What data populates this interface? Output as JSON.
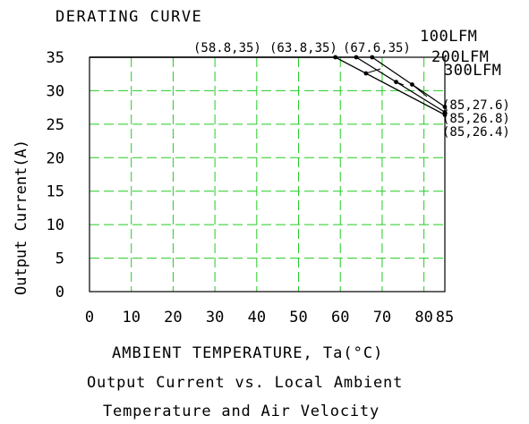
{
  "chart_data": {
    "type": "line",
    "title": "DERATING CURVE",
    "xlabel": "AMBIENT TEMPERATURE, Ta(°C)",
    "ylabel": "Output Current(A)",
    "caption": [
      "Output Current vs. Local Ambient",
      "Temperature and Air Velocity"
    ],
    "xlim": [
      0,
      85
    ],
    "ylim": [
      0,
      35
    ],
    "x_ticks": [
      "0",
      "10",
      "20",
      "30",
      "40",
      "50",
      "60",
      "70",
      "80",
      "85"
    ],
    "x_tick_values": [
      0,
      10,
      20,
      30,
      40,
      50,
      60,
      70,
      80,
      85
    ],
    "y_ticks": [
      "0",
      "5",
      "10",
      "15",
      "20",
      "25",
      "30",
      "35"
    ],
    "y_tick_values": [
      0,
      5,
      10,
      15,
      20,
      25,
      30,
      35
    ],
    "grid": true,
    "colors": {
      "grid": "#22cc22",
      "line": "#000000",
      "frame": "#000000"
    },
    "series": [
      {
        "name": "100LFM",
        "x": [
          0,
          58.8,
          85
        ],
        "y": [
          35,
          35,
          26.4
        ]
      },
      {
        "name": "200LFM",
        "x": [
          0,
          63.8,
          85
        ],
        "y": [
          35,
          35,
          26.8
        ]
      },
      {
        "name": "300LFM",
        "x": [
          0,
          67.6,
          85
        ],
        "y": [
          35,
          35,
          27.6
        ]
      }
    ],
    "annotations": [
      {
        "text": "(58.8,35)"
      },
      {
        "text": "(63.8,35)"
      },
      {
        "text": "(67.6,35)"
      },
      {
        "text": "(85,27.6)"
      },
      {
        "text": "(85,26.8)"
      },
      {
        "text": "(85,26.4)"
      }
    ]
  }
}
